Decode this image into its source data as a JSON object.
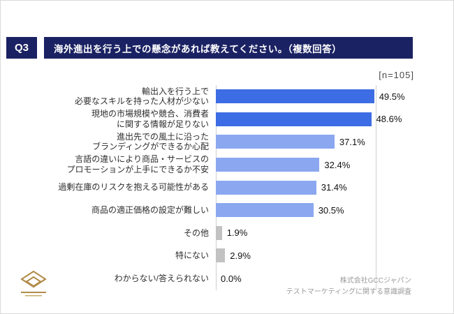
{
  "header": {
    "question_label": "Q3",
    "title": "海外進出を行う上での懸念があれば教えてください。（複数回答）",
    "sample_size_label": "[n=105]"
  },
  "chart_data": {
    "type": "bar",
    "orientation": "horizontal",
    "title": "海外進出を行う上での懸念があれば教えてください。（複数回答）",
    "sample_size_n": 105,
    "categories": [
      "輸出入を行う上で\n必要なスキルを持った人材が少ない",
      "現地の市場規模や競合、消費者\nに関する情報が足りない",
      "進出先での風土に沿った\nブランディングができるか心配",
      "言語の違いにより商品・サービスの\nプロモーションが上手にできるか不安",
      "過剰在庫のリスクを抱える可能性がある",
      "商品の適正価格の設定が難しい",
      "その他",
      "特にない",
      "わからない/答えられない"
    ],
    "values": [
      49.5,
      48.6,
      37.1,
      32.4,
      31.4,
      30.5,
      1.9,
      2.9,
      0.0
    ],
    "value_labels": [
      "49.5%",
      "48.6%",
      "37.1%",
      "32.4%",
      "31.4%",
      "30.5%",
      "1.9%",
      "2.9%",
      "0.0%"
    ],
    "xlim": [
      0,
      50
    ],
    "grid": "vertical lines at 0% and 50%",
    "legend_position": "none",
    "color_keys": [
      "primary",
      "primary",
      "secondary",
      "secondary",
      "secondary",
      "secondary",
      "muted",
      "muted",
      "muted"
    ],
    "colors": {
      "primary": "#3D6DE4",
      "secondary": "#8AA7F0",
      "muted": "#C2C2C2",
      "header_navy": "#1B2263"
    }
  },
  "footer": {
    "company": "株式会社GCCジャパン",
    "survey_name": "テストマーケティングに関する意識調査"
  },
  "logo": {
    "brand": "GCC",
    "color": "#B28B4A"
  }
}
